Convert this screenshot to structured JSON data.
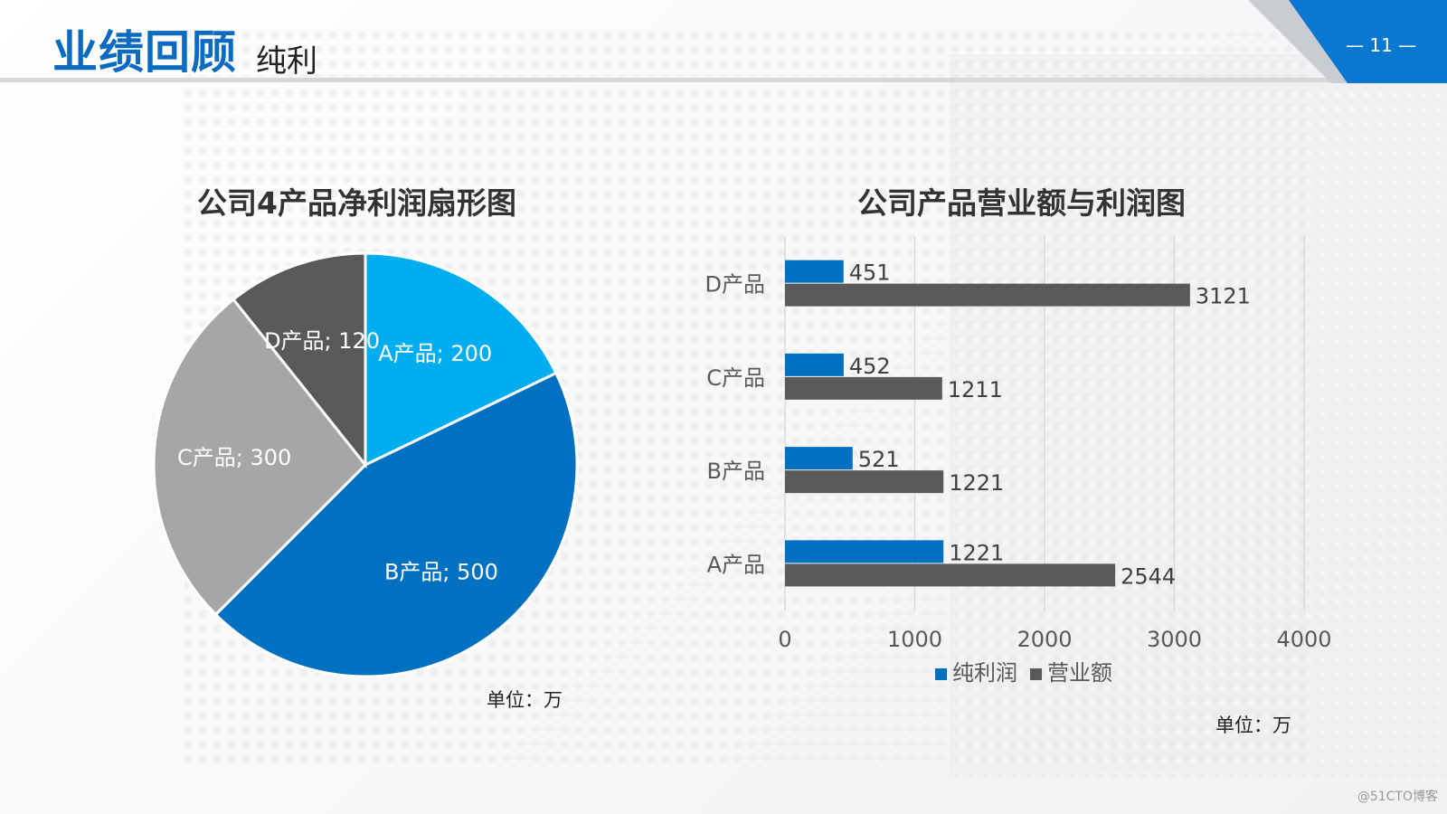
{
  "header": {
    "title": "业绩回顾",
    "subtitle": "纯利",
    "page_number": "— 11 —"
  },
  "colors": {
    "brand_blue": "#0b6bc1",
    "light_blue": "#00aeef",
    "dark_gray": "#595959",
    "mid_gray": "#a6a6a6",
    "corner_blue": "#0a78d1"
  },
  "watermark": "@51CTO博客",
  "chart_data": [
    {
      "type": "pie",
      "title": "公司4产品净利润扇形图",
      "unit_note": "单位：万",
      "slices": [
        {
          "label": "A产品",
          "value": 200,
          "display": "A产品; 200",
          "color": "#00aeef"
        },
        {
          "label": "B产品",
          "value": 500,
          "display": "B产品; 500",
          "color": "#0070c0"
        },
        {
          "label": "C产品",
          "value": 300,
          "display": "C产品; 300",
          "color": "#a6a6a6"
        },
        {
          "label": "D产品",
          "value": 120,
          "display": "D产品; 120",
          "color": "#595959"
        }
      ]
    },
    {
      "type": "bar",
      "orientation": "horizontal",
      "title": "公司产品营业额与利润图",
      "unit_note": "单位：万",
      "categories": [
        "D产品",
        "C产品",
        "B产品",
        "A产品"
      ],
      "series": [
        {
          "name": "纯利润",
          "color": "#0070c0",
          "values": [
            451,
            452,
            521,
            1221
          ]
        },
        {
          "name": "营业额",
          "color": "#595959",
          "values": [
            3121,
            1211,
            1221,
            2544
          ]
        }
      ],
      "xlim": [
        0,
        4000
      ],
      "xticks": [
        "0",
        "1000",
        "2000",
        "3000",
        "4000"
      ],
      "grid": true,
      "legend_position": "bottom"
    }
  ]
}
